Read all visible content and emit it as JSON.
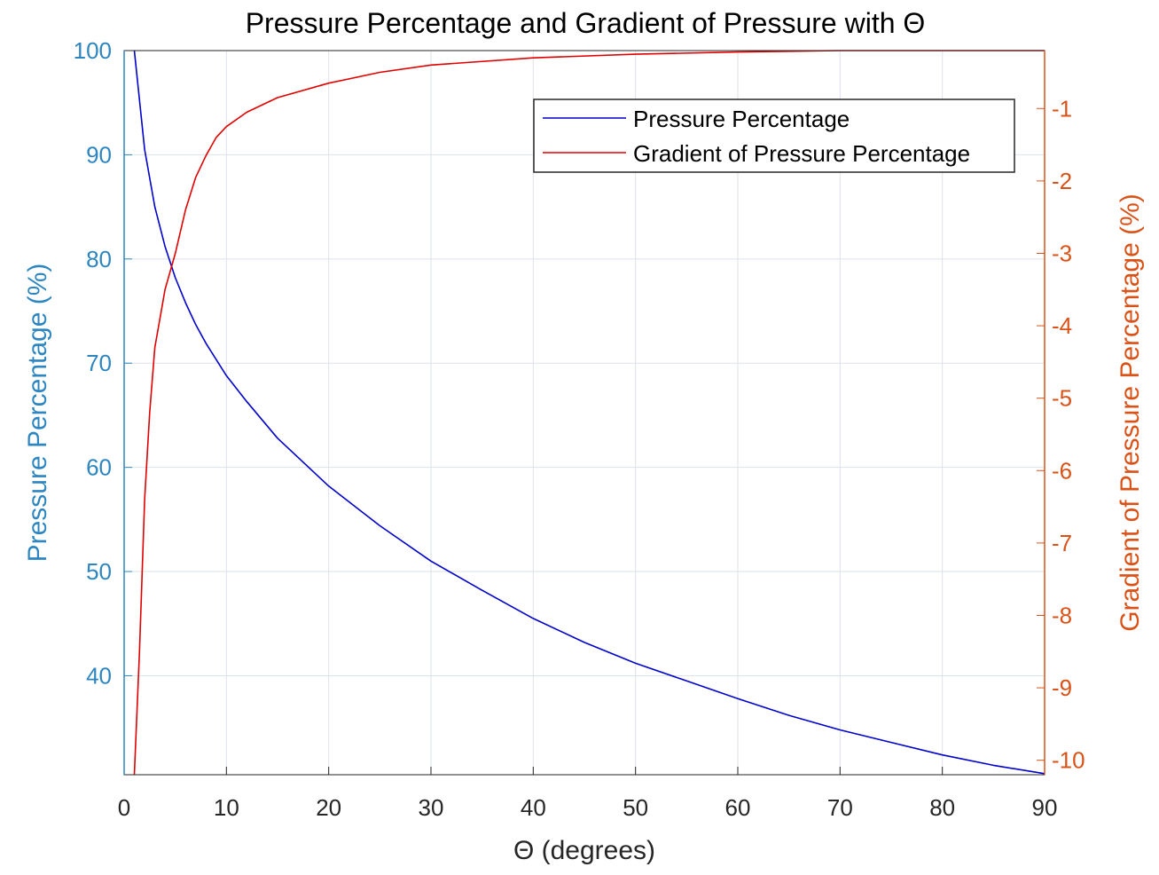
{
  "chart_data": {
    "type": "line",
    "title": "Pressure Percentage and Gradient of Pressure with Θ",
    "xlabel": "Θ (degrees)",
    "ylabel_left": "Pressure Percentage (%)",
    "ylabel_right": "Gradient of Pressure Percentage (%)",
    "xlim": [
      0,
      90
    ],
    "ylim_left": [
      30.5,
      100
    ],
    "ylim_right": [
      -10.2,
      -0.2
    ],
    "x_ticks": [
      "0",
      "10",
      "20",
      "30",
      "40",
      "50",
      "60",
      "70",
      "80",
      "90"
    ],
    "y_left_ticks": [
      "40",
      "50",
      "60",
      "70",
      "80",
      "90",
      "100"
    ],
    "y_right_ticks": [
      "-1",
      "-2",
      "-3",
      "-4",
      "-5",
      "-6",
      "-7",
      "-8",
      "-9",
      "-10"
    ],
    "grid": true,
    "legend_position": "top-right",
    "left_axis_color": "#2e86c1",
    "right_axis_color": "#d95319",
    "series": [
      {
        "name": "Pressure Percentage",
        "axis": "left",
        "color": "#0000cc",
        "x": [
          1,
          2,
          3,
          4,
          5,
          6,
          7,
          8,
          10,
          12,
          15,
          20,
          25,
          30,
          35,
          40,
          45,
          50,
          55,
          60,
          65,
          70,
          75,
          80,
          85,
          90
        ],
        "y": [
          100,
          90.5,
          85,
          81.2,
          78.2,
          75.8,
          73.7,
          71.9,
          68.8,
          66.3,
          62.8,
          58.2,
          54.4,
          51.0,
          48.2,
          45.5,
          43.2,
          41.2,
          39.5,
          37.8,
          36.2,
          34.8,
          33.6,
          32.4,
          31.4,
          30.6
        ]
      },
      {
        "name": "Gradient of Pressure Percentage",
        "axis": "right",
        "color": "#e00000",
        "x": [
          1,
          1.5,
          2,
          2.5,
          3,
          3.5,
          4,
          5,
          6,
          7,
          8,
          9,
          10,
          12,
          15,
          20,
          25,
          30,
          40,
          50,
          60,
          70,
          80,
          90
        ],
        "y": [
          -10.2,
          -8.5,
          -6.4,
          -5.2,
          -4.3,
          -3.9,
          -3.5,
          -3.0,
          -2.4,
          -1.95,
          -1.65,
          -1.4,
          -1.25,
          -1.05,
          -0.85,
          -0.65,
          -0.5,
          -0.4,
          -0.3,
          -0.25,
          -0.22,
          -0.2,
          -0.2,
          -0.2
        ]
      }
    ]
  }
}
